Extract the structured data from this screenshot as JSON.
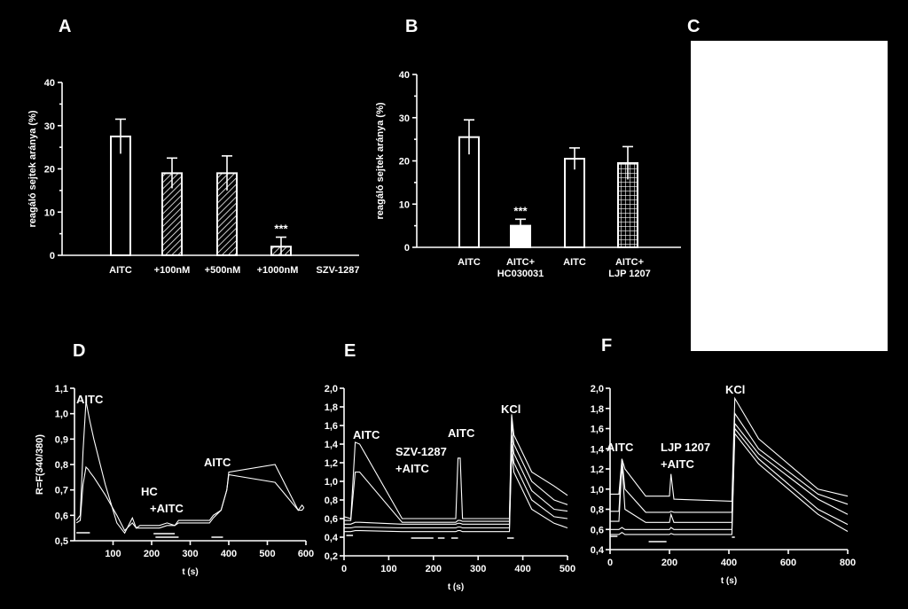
{
  "panels": {
    "A": "A",
    "B": "B",
    "C": "C",
    "D": "D",
    "E": "E",
    "F": "F"
  },
  "chart_data": [
    {
      "id": "A",
      "type": "bar",
      "ylabel": "reagáló sejtek aránya (%)",
      "ylim": [
        0,
        40
      ],
      "yticks": [
        "0",
        "10",
        "20",
        "30",
        "40"
      ],
      "categories": [
        "AITC",
        "+100nM",
        "+500nM",
        "+1000nM"
      ],
      "group_label": "SZV-1287",
      "values": [
        27.5,
        19,
        19,
        2
      ],
      "errors": [
        4,
        3.5,
        4,
        2.2
      ],
      "patterns": [
        "none",
        "hatch",
        "hatch",
        "hatch"
      ],
      "annotations": [
        {
          "category": "+1000nM",
          "text": "***"
        }
      ]
    },
    {
      "id": "B",
      "type": "bar",
      "ylabel": "reagáló sejtek aránya (%)",
      "ylim": [
        0,
        40
      ],
      "yticks": [
        "0",
        "10",
        "20",
        "30",
        "40"
      ],
      "categories": [
        [
          "AITC"
        ],
        [
          "AITC+",
          "HC030031"
        ],
        [
          "AITC"
        ],
        [
          "AITC+",
          "LJP 1207"
        ]
      ],
      "values": [
        25.5,
        5,
        20.5,
        19.5
      ],
      "errors": [
        4,
        1.5,
        2.5,
        3.8
      ],
      "patterns": [
        "none",
        "solid",
        "none",
        "grid"
      ],
      "annotations": [
        {
          "category": 1,
          "text": "***"
        }
      ]
    },
    {
      "id": "D",
      "type": "line",
      "ylabel": "R=F(340/380)",
      "xlabel": "t (s)",
      "xlim": [
        0,
        600
      ],
      "ylim": [
        0.5,
        1.1
      ],
      "xticks": [
        "100",
        "200",
        "300",
        "400",
        "500",
        "600"
      ],
      "yticks": [
        "0,5",
        "0,6",
        "0,7",
        "0,8",
        "0,9",
        "1,0",
        "1,1"
      ],
      "annotations": [
        "AITC",
        "HC",
        "+AITC",
        "AITC"
      ],
      "series": [
        {
          "x": [
            5,
            15,
            22,
            30,
            36,
            40,
            50,
            80,
            110,
            130,
            150,
            160,
            170,
            200,
            220,
            240,
            260,
            270,
            300,
            350,
            360,
            380,
            395,
            400,
            520,
            580,
            590,
            595
          ],
          "y": [
            0.58,
            0.6,
            0.85,
            1.05,
            1.0,
            0.97,
            0.9,
            0.72,
            0.57,
            0.53,
            0.59,
            0.55,
            0.56,
            0.56,
            0.56,
            0.57,
            0.56,
            0.58,
            0.58,
            0.58,
            0.6,
            0.62,
            0.7,
            0.77,
            0.8,
            0.62,
            0.64,
            0.63
          ]
        },
        {
          "x": [
            5,
            15,
            22,
            30,
            36,
            40,
            50,
            80,
            110,
            130,
            150,
            160,
            170,
            200,
            220,
            240,
            260,
            270,
            300,
            350,
            360,
            380,
            395,
            400,
            520,
            580,
            590,
            595
          ],
          "y": [
            0.57,
            0.58,
            0.72,
            0.79,
            0.78,
            0.77,
            0.75,
            0.68,
            0.6,
            0.54,
            0.57,
            0.55,
            0.55,
            0.55,
            0.55,
            0.56,
            0.56,
            0.57,
            0.57,
            0.57,
            0.59,
            0.62,
            0.7,
            0.76,
            0.73,
            0.62,
            0.62,
            0.63
          ]
        }
      ]
    },
    {
      "id": "E",
      "type": "line",
      "ylabel": "",
      "xlabel": "t (s)",
      "xlim": [
        0,
        500
      ],
      "ylim": [
        0.2,
        2.0
      ],
      "xticks": [
        "0",
        "100",
        "200",
        "300",
        "400",
        "500"
      ],
      "yticks": [
        "0,2",
        "0,4",
        "0,6",
        "0,8",
        "1,0",
        "1,2",
        "1,4",
        "1,6",
        "1,8",
        "2,0"
      ],
      "annotations": [
        "AITC",
        "SZV-1287",
        "+AITC",
        "AITC",
        "KCl"
      ],
      "series": [
        {
          "x": [
            0,
            15,
            25,
            35,
            130,
            250,
            255,
            260,
            265,
            370,
            375,
            380,
            420,
            470,
            500
          ],
          "y": [
            0.62,
            0.6,
            1.42,
            1.4,
            0.6,
            0.6,
            1.25,
            1.25,
            0.6,
            0.6,
            1.72,
            1.5,
            1.1,
            0.95,
            0.85
          ]
        },
        {
          "x": [
            0,
            15,
            25,
            35,
            130,
            250,
            255,
            260,
            265,
            370,
            375,
            380,
            420,
            470,
            500
          ],
          "y": [
            0.58,
            0.58,
            1.1,
            1.1,
            0.56,
            0.56,
            0.58,
            0.58,
            0.57,
            0.57,
            1.65,
            1.4,
            1.0,
            0.8,
            0.75
          ]
        },
        {
          "x": [
            0,
            15,
            25,
            35,
            130,
            250,
            255,
            260,
            265,
            370,
            375,
            380,
            420,
            470,
            500
          ],
          "y": [
            0.54,
            0.54,
            0.56,
            0.56,
            0.54,
            0.54,
            0.55,
            0.55,
            0.54,
            0.54,
            1.5,
            1.3,
            0.9,
            0.7,
            0.68
          ]
        },
        {
          "x": [
            0,
            15,
            25,
            35,
            130,
            250,
            255,
            260,
            265,
            370,
            375,
            380,
            420,
            470,
            500
          ],
          "y": [
            0.5,
            0.5,
            0.51,
            0.51,
            0.5,
            0.5,
            0.51,
            0.51,
            0.5,
            0.5,
            1.4,
            1.2,
            0.8,
            0.62,
            0.6
          ]
        },
        {
          "x": [
            0,
            15,
            25,
            35,
            130,
            250,
            255,
            260,
            265,
            370,
            375,
            380,
            420,
            470,
            500
          ],
          "y": [
            0.46,
            0.46,
            0.47,
            0.47,
            0.46,
            0.46,
            0.47,
            0.47,
            0.46,
            0.46,
            1.3,
            1.1,
            0.7,
            0.55,
            0.5
          ]
        }
      ]
    },
    {
      "id": "F",
      "type": "line",
      "ylabel": "",
      "xlabel": "t (s)",
      "xlim": [
        0,
        800
      ],
      "ylim": [
        0.4,
        2.0
      ],
      "xticks": [
        "0",
        "200",
        "400",
        "600",
        "800"
      ],
      "yticks": [
        "0,4",
        "0,6",
        "0,8",
        "1,0",
        "1,2",
        "1,4",
        "1,6",
        "1,8",
        "2,0"
      ],
      "annotations": [
        "AITC",
        "LJP 1207",
        "+AITC",
        "KCl"
      ],
      "series": [
        {
          "x": [
            0,
            30,
            40,
            50,
            120,
            200,
            205,
            215,
            410,
            420,
            500,
            700,
            800
          ],
          "y": [
            0.95,
            0.95,
            1.3,
            1.2,
            0.93,
            0.93,
            1.15,
            0.9,
            0.88,
            1.9,
            1.5,
            1.0,
            0.93
          ]
        },
        {
          "x": [
            0,
            30,
            40,
            50,
            120,
            200,
            205,
            215,
            410,
            420,
            500,
            700,
            800
          ],
          "y": [
            0.78,
            0.78,
            1.3,
            1.0,
            0.77,
            0.77,
            0.78,
            0.77,
            0.77,
            1.75,
            1.4,
            0.95,
            0.85
          ]
        },
        {
          "x": [
            0,
            30,
            40,
            50,
            120,
            200,
            205,
            215,
            410,
            420,
            500,
            700,
            800
          ],
          "y": [
            0.68,
            0.68,
            1.25,
            0.8,
            0.67,
            0.67,
            0.75,
            0.67,
            0.67,
            1.65,
            1.35,
            0.9,
            0.75
          ]
        },
        {
          "x": [
            0,
            30,
            40,
            50,
            120,
            200,
            205,
            215,
            410,
            420,
            500,
            700,
            800
          ],
          "y": [
            0.6,
            0.6,
            0.62,
            0.6,
            0.6,
            0.6,
            0.62,
            0.6,
            0.6,
            1.6,
            1.3,
            0.8,
            0.65
          ]
        },
        {
          "x": [
            0,
            30,
            40,
            50,
            120,
            200,
            205,
            215,
            410,
            420,
            500,
            700,
            800
          ],
          "y": [
            0.55,
            0.55,
            0.57,
            0.55,
            0.55,
            0.55,
            0.56,
            0.55,
            0.55,
            1.55,
            1.25,
            0.75,
            0.58
          ]
        }
      ]
    }
  ]
}
